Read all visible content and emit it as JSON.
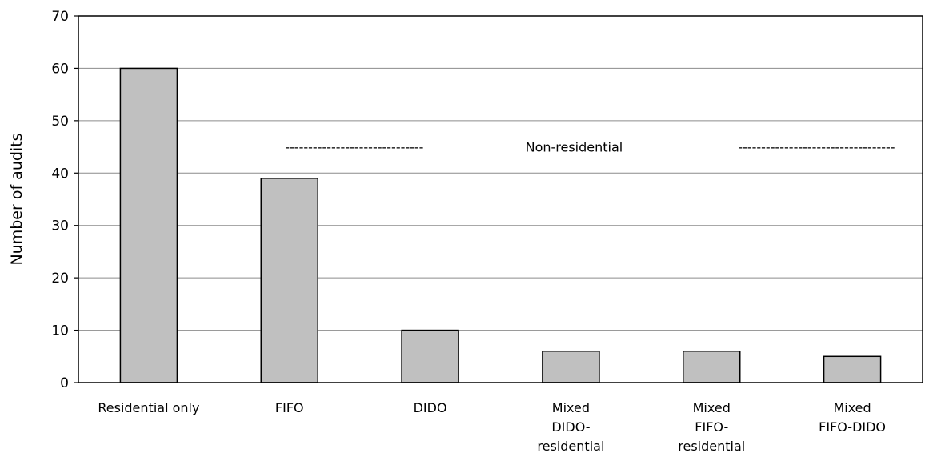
{
  "chart_data": {
    "type": "bar",
    "ylabel": "Number of audits",
    "xlabel": "",
    "ylim": [
      0,
      70
    ],
    "yticks": [
      0,
      10,
      20,
      30,
      40,
      50,
      60,
      70
    ],
    "grid": true,
    "bar_color": "#c0c0c0",
    "categories": [
      [
        "Residential only"
      ],
      [
        "FIFO"
      ],
      [
        "DIDO"
      ],
      [
        "Mixed",
        "DIDO-",
        "residential"
      ],
      [
        "Mixed",
        "FIFO-",
        "residential"
      ],
      [
        "Mixed",
        "FIFO-DIDO"
      ]
    ],
    "values": [
      60,
      39,
      10,
      6,
      6,
      5
    ],
    "annotations": [
      {
        "text": "Non-residential",
        "dashes_left": "------------------------------",
        "dashes_right": "----------------------------------",
        "y": 45,
        "from_category": 1,
        "to_category": 5
      }
    ]
  }
}
